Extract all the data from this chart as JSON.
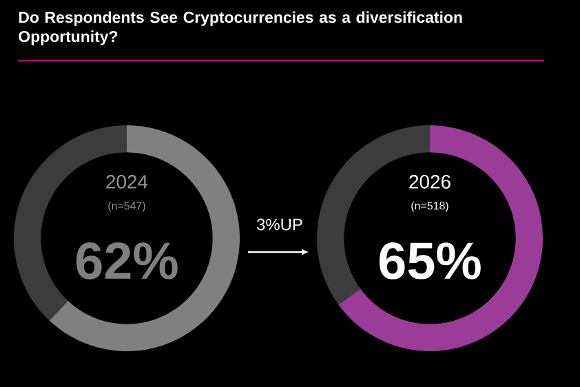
{
  "chart_data": [
    {
      "type": "donut",
      "title": "Do Respondents See Cryptocurrencies as a diversification Opportunity?",
      "subtitle": "2024",
      "annotations": [
        "(n=547)",
        "3%UP"
      ],
      "categories": [
        null,
        null
      ],
      "values": [
        62,
        38
      ],
      "colors": [
        "#808080",
        "#3c3c3c"
      ],
      "value_labels": [
        "62%",
        null
      ]
    },
    {
      "type": "donut",
      "title": "2026",
      "annotations": [
        "(n=518)"
      ],
      "categories": [
        null,
        null
      ],
      "values": [
        65,
        35
      ],
      "colors": [
        "#9a3c98",
        "#3c3c3c"
      ],
      "value_labels": [
        "65%",
        null
      ]
    }
  ]
}
